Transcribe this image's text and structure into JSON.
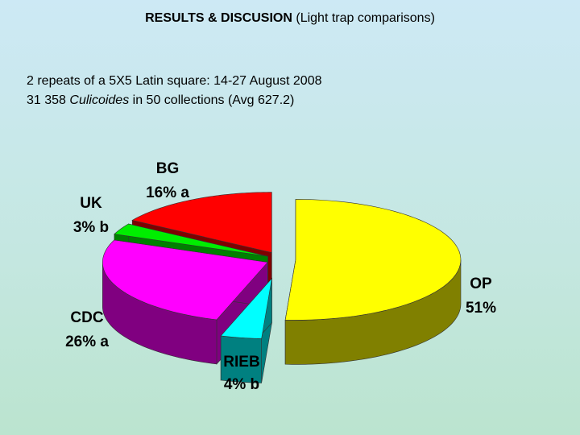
{
  "chart_data": {
    "type": "pie",
    "title": "RESULTS & DISCUSION",
    "title_note": "(Light trap comparisons)",
    "subtitle": [
      "2 repeats of a 5X5 Latin square: 14-27 August 2008",
      [
        "31 358 ",
        "Culicoides",
        " in 50 collections (Avg 627.2)"
      ]
    ],
    "categories": [
      "OP",
      "RIEB",
      "CDC",
      "UK",
      "BG"
    ],
    "values": [
      51,
      4,
      26,
      3,
      16
    ],
    "value_labels": [
      "51%",
      "4% b",
      "26% a",
      "3% b",
      "16% a"
    ],
    "colors": [
      "#ffff00",
      "#00ffff",
      "#ff00ff",
      "#00ee00",
      "#ff0000"
    ],
    "side_colors": [
      "#808000",
      "#008080",
      "#800080",
      "#008000",
      "#800000"
    ]
  }
}
